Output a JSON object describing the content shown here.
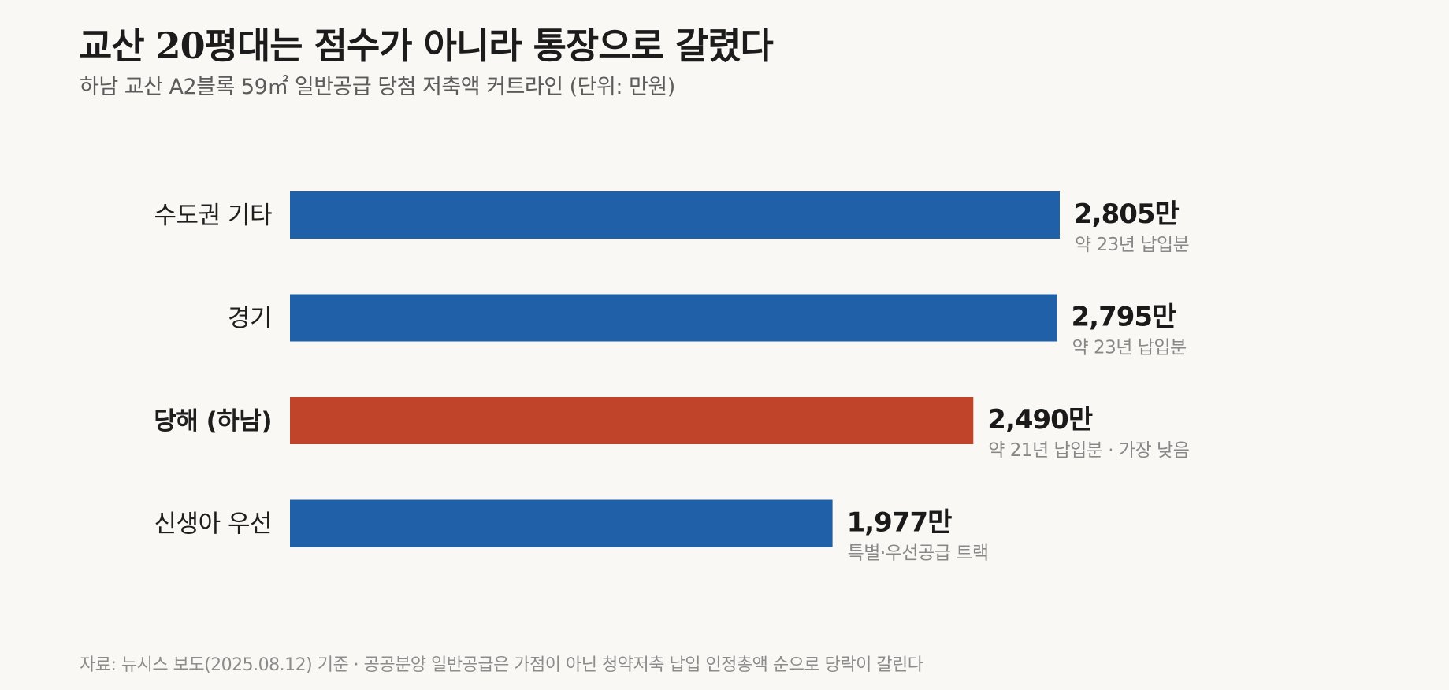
{
  "title": "교산 20평대는 점수가 아니라 통장으로 갈렸다",
  "subtitle": "하남 교산 A2블록 59㎡ 일반공급 당첨 저축액 커트라인 (단위: 만원)",
  "source": "자료: 뉴시스 보도(2025.08.12) 기준 · 공공분양 일반공급은 가점이 아닌 청약저축 납입 인정총액 순으로 당락이 갈린다",
  "colors": {
    "default_bar": "#2060a8",
    "highlight_bar": "#c0442a"
  },
  "chart_data": {
    "type": "bar",
    "orientation": "horizontal",
    "xlim": [
      0,
      2805
    ],
    "categories": [
      "수도권 기타",
      "경기",
      "당해 (하남)",
      "신생아 우선"
    ],
    "values": [
      2805,
      2795,
      2490,
      1977
    ],
    "value_labels": [
      "2,805만",
      "2,795만",
      "2,490만",
      "1,977만"
    ],
    "notes": [
      "약 23년 납입분",
      "약 23년 납입분",
      "약 21년 납입분 · 가장 낮음",
      "특별·우선공급 트랙"
    ],
    "highlight": [
      false,
      false,
      true,
      false
    ]
  }
}
